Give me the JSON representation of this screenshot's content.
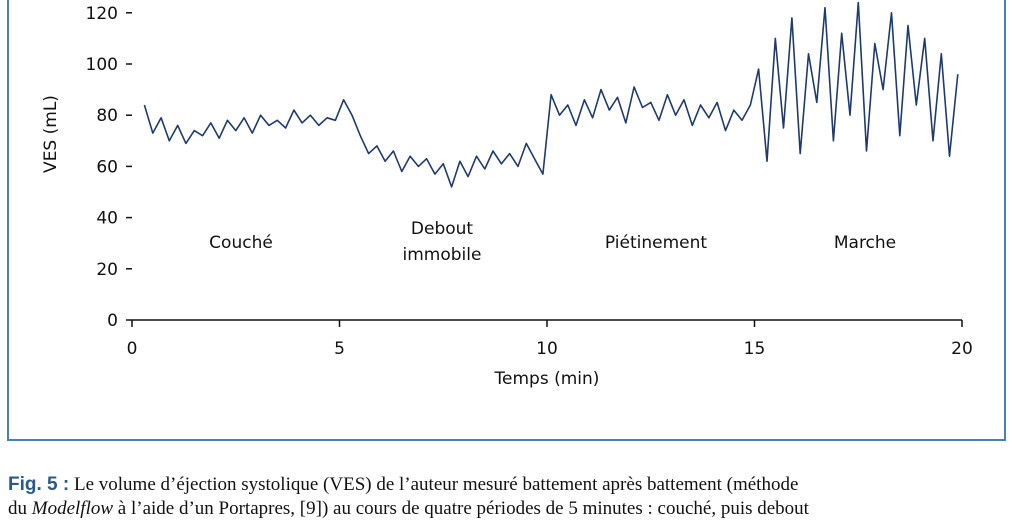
{
  "chart_data": {
    "type": "line",
    "ylabel": "VES (mL)",
    "xlabel": "Temps (min)",
    "xlim": [
      0,
      20
    ],
    "xticks": [
      0,
      5,
      10,
      15,
      20
    ],
    "ylim": [
      0,
      125
    ],
    "yticks": [
      0,
      20,
      40,
      60,
      80,
      100,
      120
    ],
    "color": "#1f3a6e",
    "annotations": [
      "Couché",
      "Debout",
      "immobile",
      "Piétinement",
      "Marche"
    ],
    "x": [
      0.3,
      0.5,
      0.7,
      0.9,
      1.1,
      1.3,
      1.5,
      1.7,
      1.9,
      2.1,
      2.3,
      2.5,
      2.7,
      2.9,
      3.1,
      3.3,
      3.5,
      3.7,
      3.9,
      4.1,
      4.3,
      4.5,
      4.7,
      4.9,
      5.1,
      5.3,
      5.5,
      5.7,
      5.9,
      6.1,
      6.3,
      6.5,
      6.7,
      6.9,
      7.1,
      7.3,
      7.5,
      7.7,
      7.9,
      8.1,
      8.3,
      8.5,
      8.7,
      8.9,
      9.1,
      9.3,
      9.5,
      9.7,
      9.9,
      10.1,
      10.3,
      10.5,
      10.7,
      10.9,
      11.1,
      11.3,
      11.5,
      11.7,
      11.9,
      12.1,
      12.3,
      12.5,
      12.7,
      12.9,
      13.1,
      13.3,
      13.5,
      13.7,
      13.9,
      14.1,
      14.3,
      14.5,
      14.7,
      14.9,
      15.1,
      15.3,
      15.5,
      15.7,
      15.9,
      16.1,
      16.3,
      16.5,
      16.7,
      16.9,
      17.1,
      17.3,
      17.5,
      17.7,
      17.9,
      18.1,
      18.3,
      18.5,
      18.7,
      18.9,
      19.1,
      19.3,
      19.5,
      19.7,
      19.9
    ],
    "values": [
      84,
      73,
      79,
      70,
      76,
      69,
      74,
      72,
      77,
      71,
      78,
      74,
      79,
      73,
      80,
      76,
      78,
      75,
      82,
      77,
      80,
      76,
      79,
      78,
      86,
      80,
      72,
      65,
      68,
      62,
      66,
      58,
      64,
      60,
      63,
      57,
      61,
      52,
      62,
      56,
      64,
      59,
      66,
      61,
      65,
      60,
      69,
      63,
      57,
      88,
      80,
      84,
      76,
      86,
      79,
      90,
      82,
      87,
      77,
      91,
      83,
      85,
      78,
      88,
      80,
      86,
      76,
      84,
      79,
      85,
      74,
      82,
      78,
      84,
      98,
      62,
      110,
      75,
      118,
      65,
      104,
      85,
      122,
      70,
      112,
      80,
      124,
      66,
      108,
      90,
      120,
      72,
      115,
      84,
      110,
      70,
      104,
      64,
      96
    ]
  },
  "caption": {
    "label": "Fig. 5 :",
    "line1": "Le volume d’éjection systolique (VES) de l’auteur mesuré battement après battement (méthode",
    "line2a": "du",
    "line2b": "Modelflow",
    "line2c": "à l’aide d’un Portapres, [9]) au cours de quatre périodes de 5 minutes : couché, puis debout"
  }
}
